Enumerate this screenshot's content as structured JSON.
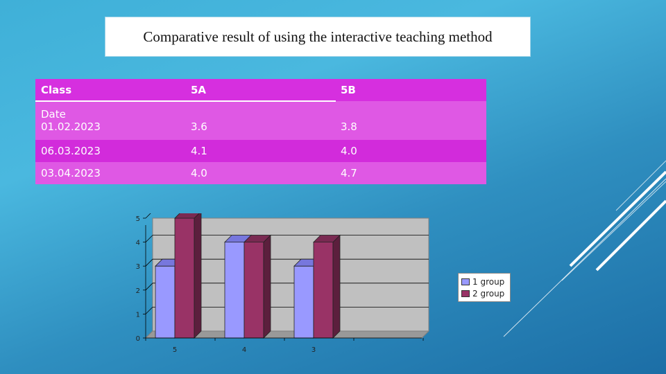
{
  "title": "Comparative result of using the interactive teaching method",
  "table": {
    "headers": [
      "Class",
      "5A",
      "5B"
    ],
    "rows": [
      {
        "c1": "Date\n01.02.2023",
        "c1a": "Date",
        "c1b": "01.02.2023",
        "c2": "3.6",
        "c3": "3.8"
      },
      {
        "c1": "06.03.2023",
        "c2": "4.1",
        "c3": "4.0"
      },
      {
        "c1": "03.04.2023",
        "c2": "4.0",
        "c3": "4.7"
      }
    ]
  },
  "chart_data": {
    "type": "bar",
    "categories": [
      "5",
      "4",
      "3"
    ],
    "series": [
      {
        "name": "1 group",
        "values": [
          3,
          4,
          3
        ],
        "color": "#9999ff"
      },
      {
        "name": "2 group",
        "values": [
          5,
          4,
          4
        ],
        "color": "#993366"
      }
    ],
    "ylim": [
      0,
      5
    ],
    "yticks": [
      "0",
      "1",
      "2",
      "3",
      "4",
      "5"
    ],
    "grid": true,
    "legend": "right",
    "style": "3d"
  },
  "legend": {
    "item1": "1 group",
    "item2": "2 group"
  }
}
